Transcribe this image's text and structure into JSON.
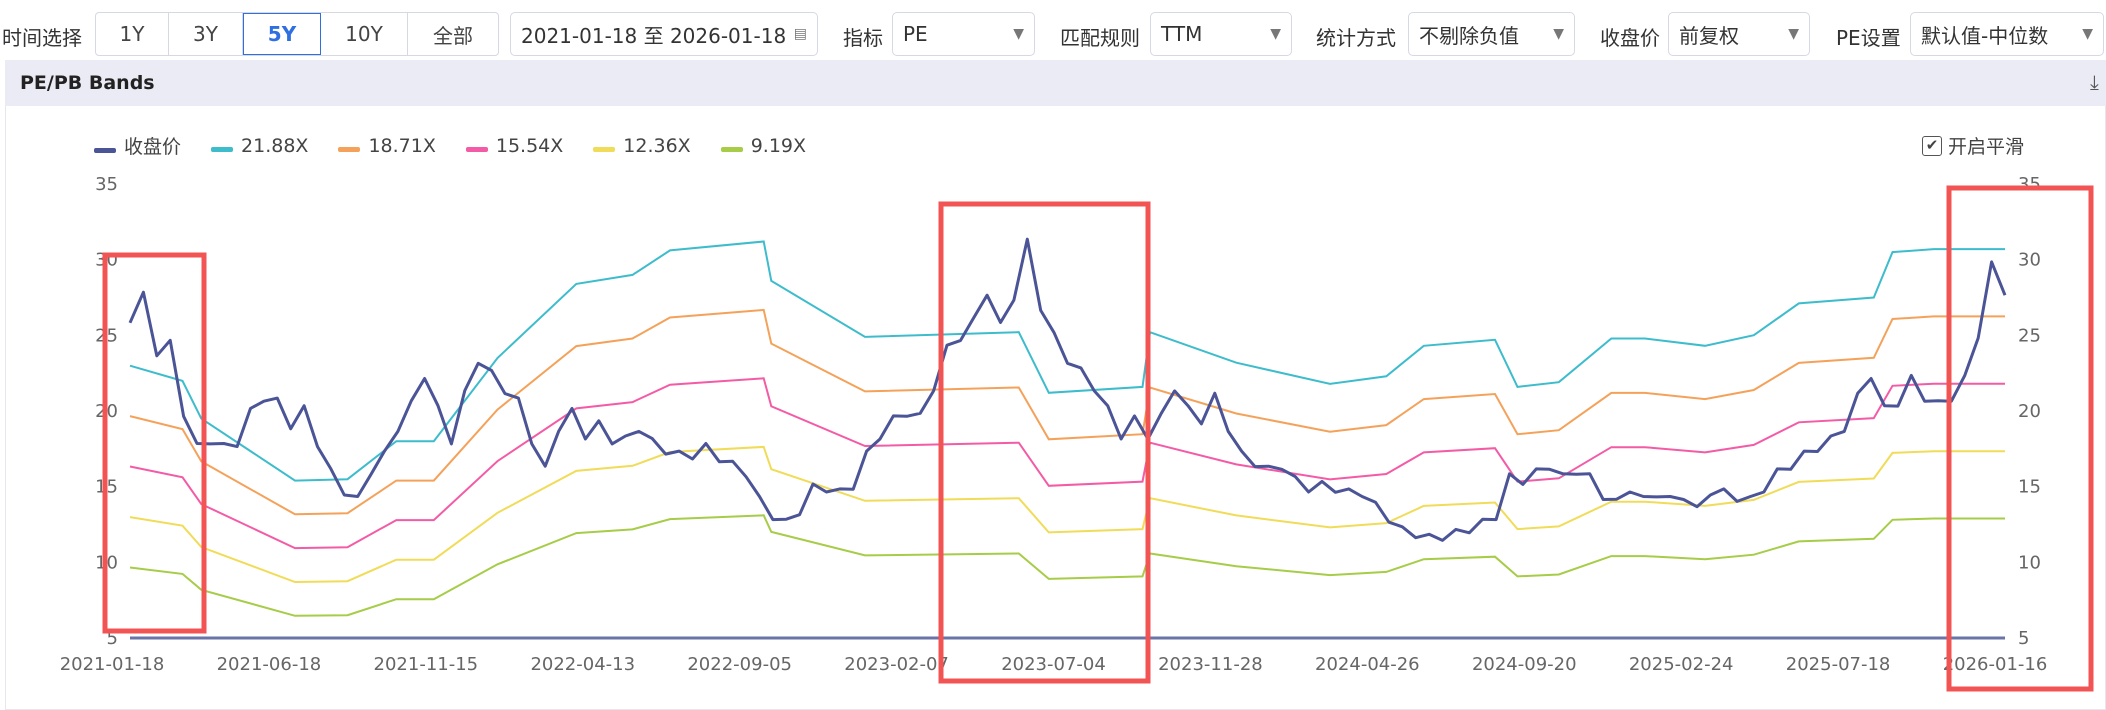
{
  "toolbar": {
    "time_label": "时间选择",
    "ranges": [
      "1Y",
      "3Y",
      "5Y",
      "10Y",
      "全部"
    ],
    "active_range": "5Y",
    "date_range": "2021-01-18 至 2026-01-18",
    "indicator_label": "指标",
    "indicator_value": "PE",
    "match_label": "匹配规则",
    "match_value": "TTM",
    "stat_label": "统计方式",
    "stat_value": "不剔除负值",
    "close_label": "收盘价",
    "close_value": "前复权",
    "pe_label": "PE设置",
    "pe_value": "默认值-中位数"
  },
  "panel": {
    "title": "PE/PB Bands",
    "smooth_label": "开启平滑",
    "smooth_checked": true
  },
  "chart_data": {
    "type": "line",
    "title": "PE/PB Bands",
    "ylim": [
      5,
      35
    ],
    "yticks": [
      "35",
      "30",
      "25",
      "20",
      "15",
      "10",
      "5"
    ],
    "xtick_labels": [
      "2021-01-18",
      "2021-06-18",
      "2021-11-15",
      "2022-04-13",
      "2022-09-05",
      "2023-02-07",
      "2023-07-04",
      "2023-11-28",
      "2024-04-26",
      "2024-09-20",
      "2025-02-24",
      "2025-07-18",
      "2026-01-16"
    ],
    "x_range_years": [
      0,
      5
    ],
    "legend": [
      {
        "name": "收盘价",
        "color": "#4a5496"
      },
      {
        "name": "21.88X",
        "multiple": 21.88,
        "color": "#3dbccc"
      },
      {
        "name": "18.71X",
        "multiple": 18.71,
        "color": "#f4a25a"
      },
      {
        "name": "15.54X",
        "multiple": 15.54,
        "color": "#f45ba6"
      },
      {
        "name": "12.36X",
        "multiple": 12.36,
        "color": "#f0dc58"
      },
      {
        "name": "9.19X",
        "multiple": 9.19,
        "color": "#a6cc48"
      }
    ],
    "band_x_years": [
      0,
      0.14,
      0.19,
      0.44,
      0.58,
      0.71,
      0.81,
      0.98,
      1.19,
      1.34,
      1.44,
      1.69,
      1.71,
      1.96,
      2.37,
      2.45,
      2.7,
      2.72,
      2.95,
      3.2,
      3.35,
      3.45,
      3.64,
      3.7,
      3.81,
      3.95,
      4.04,
      4.2,
      4.33,
      4.45,
      4.65,
      4.7,
      4.81,
      5.0
    ],
    "band_eps": [
      1.051,
      1.005,
      0.891,
      0.704,
      0.708,
      0.823,
      0.823,
      1.074,
      1.298,
      1.325,
      1.399,
      1.426,
      1.307,
      1.138,
      1.152,
      0.969,
      0.987,
      1.152,
      1.06,
      0.996,
      1.019,
      1.111,
      1.129,
      0.987,
      1.001,
      1.133,
      1.133,
      1.111,
      1.143,
      1.239,
      1.257,
      1.394,
      1.403,
      1.403
    ],
    "price": [
      26,
      27.5,
      24,
      24.5,
      20,
      17.5,
      18,
      17.5,
      18,
      20,
      21,
      20.5,
      19,
      20,
      18,
      16,
      14.8,
      14,
      16,
      17,
      19,
      20.5,
      22.5,
      20,
      18,
      21,
      23.5,
      22.5,
      21.5,
      20.5,
      18,
      16,
      19,
      20,
      18.5,
      19,
      18,
      18,
      19,
      18,
      17.5,
      17,
      17,
      17.5,
      17,
      16.5,
      16,
      14,
      13,
      12.5,
      13.5,
      15,
      15,
      14.5,
      15,
      17,
      18.5,
      19.5,
      20,
      19.5,
      21.5,
      24,
      25,
      26,
      28,
      25.5,
      27.5,
      31,
      27,
      25,
      23.5,
      22.5,
      21.5,
      20,
      18.5,
      19.5,
      18.5,
      19.5,
      21.5,
      20,
      19.5,
      21,
      19,
      17,
      16.5,
      16,
      16.5,
      15.5,
      15,
      15,
      14.8,
      14.5,
      14.7,
      13.8,
      13,
      12,
      11.8,
      11.5,
      11.8,
      12,
      12.3,
      12.5,
      13,
      15.5,
      15.5,
      16,
      16.5,
      15.5,
      16,
      15.5,
      14.5,
      14,
      15,
      14,
      14.5,
      14,
      14.5,
      13.5,
      14.8,
      14.5,
      14.2,
      14,
      15,
      16,
      16.5,
      17,
      17.5,
      18,
      19,
      21,
      22.5,
      20,
      20.5,
      22,
      21,
      20.5,
      21,
      22,
      25,
      29.5,
      28
    ]
  }
}
